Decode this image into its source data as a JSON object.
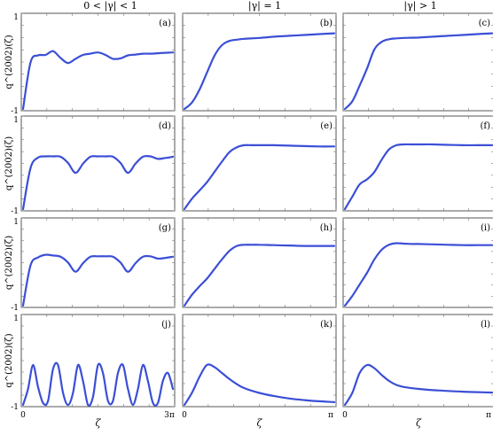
{
  "column_headers": [
    "0 < |γ| < 1",
    "|γ| = 1",
    "|γ| > 1"
  ],
  "ylabel": "q^(2002)(ζ)",
  "xlabel": "ζ",
  "chart_data": [
    {
      "type": "line",
      "panel_label": "(a)",
      "xlim": [
        0,
        3
      ],
      "ylim": [
        -1,
        1
      ],
      "y_ticks": [
        "1",
        "-1"
      ],
      "x": [
        0,
        0.15,
        0.3,
        0.45,
        0.6,
        0.75,
        0.9,
        1.05,
        1.2,
        1.35,
        1.5,
        1.65,
        1.8,
        1.95,
        2.1,
        2.25,
        2.4,
        2.55,
        2.7,
        2.85,
        3.0
      ],
      "y": [
        -1,
        0.1,
        0.26,
        0.27,
        0.36,
        0.2,
        0.08,
        0.18,
        0.27,
        0.3,
        0.33,
        0.27,
        0.18,
        0.19,
        0.26,
        0.28,
        0.3,
        0.3,
        0.31,
        0.32,
        0.33
      ]
    },
    {
      "type": "line",
      "panel_label": "(b)",
      "xlim": [
        0,
        1
      ],
      "ylim": [
        -1,
        1
      ],
      "y_ticks": [],
      "x": [
        0,
        0.05,
        0.1,
        0.15,
        0.2,
        0.25,
        0.3,
        0.35,
        0.4,
        0.5,
        0.6,
        0.7,
        0.8,
        0.9,
        1.0
      ],
      "y": [
        -1,
        -0.85,
        -0.55,
        -0.15,
        0.25,
        0.5,
        0.6,
        0.63,
        0.65,
        0.67,
        0.7,
        0.72,
        0.74,
        0.76,
        0.78
      ]
    },
    {
      "type": "line",
      "panel_label": "(c)",
      "xlim": [
        0,
        1
      ],
      "ylim": [
        -1,
        1
      ],
      "y_ticks": [],
      "x": [
        0,
        0.05,
        0.1,
        0.15,
        0.2,
        0.25,
        0.3,
        0.35,
        0.4,
        0.5,
        0.6,
        0.7,
        0.8,
        0.9,
        1.0
      ],
      "y": [
        -1,
        -0.82,
        -0.45,
        -0.05,
        0.4,
        0.58,
        0.64,
        0.66,
        0.67,
        0.68,
        0.7,
        0.72,
        0.74,
        0.76,
        0.78
      ]
    },
    {
      "type": "line",
      "panel_label": "(d)",
      "xlim": [
        0,
        3
      ],
      "ylim": [
        -1,
        1
      ],
      "y_ticks": [
        "1",
        "-1"
      ],
      "x": [
        0,
        0.15,
        0.3,
        0.45,
        0.6,
        0.75,
        0.9,
        1.05,
        1.2,
        1.35,
        1.5,
        1.65,
        1.8,
        1.95,
        2.1,
        2.25,
        2.4,
        2.55,
        2.7,
        2.85,
        3.0
      ],
      "y": [
        -1,
        0.0,
        0.25,
        0.28,
        0.28,
        0.27,
        0.12,
        -0.12,
        0.1,
        0.27,
        0.28,
        0.28,
        0.27,
        0.12,
        -0.12,
        0.1,
        0.27,
        0.28,
        0.22,
        0.24,
        0.27
      ]
    },
    {
      "type": "line",
      "panel_label": "(e)",
      "xlim": [
        0,
        1
      ],
      "ylim": [
        -1,
        1
      ],
      "y_ticks": [],
      "x": [
        0,
        0.05,
        0.1,
        0.15,
        0.2,
        0.25,
        0.3,
        0.35,
        0.4,
        0.45,
        0.5,
        0.6,
        0.7,
        0.8,
        0.9,
        1.0
      ],
      "y": [
        -1,
        -0.75,
        -0.55,
        -0.35,
        -0.1,
        0.15,
        0.38,
        0.5,
        0.55,
        0.55,
        0.55,
        0.55,
        0.54,
        0.53,
        0.52,
        0.52
      ]
    },
    {
      "type": "line",
      "panel_label": "(f)",
      "xlim": [
        0,
        1
      ],
      "ylim": [
        -1,
        1
      ],
      "y_ticks": [],
      "x": [
        0,
        0.05,
        0.1,
        0.15,
        0.2,
        0.25,
        0.3,
        0.35,
        0.4,
        0.45,
        0.5,
        0.6,
        0.7,
        0.8,
        0.9,
        1.0
      ],
      "y": [
        -1,
        -0.7,
        -0.4,
        -0.28,
        -0.1,
        0.2,
        0.45,
        0.55,
        0.57,
        0.57,
        0.57,
        0.57,
        0.56,
        0.55,
        0.55,
        0.55
      ]
    },
    {
      "type": "line",
      "panel_label": "(g)",
      "xlim": [
        0,
        3
      ],
      "ylim": [
        -1,
        1
      ],
      "y_ticks": [
        "1",
        "-1"
      ],
      "x": [
        0,
        0.15,
        0.3,
        0.45,
        0.6,
        0.75,
        0.9,
        1.05,
        1.2,
        1.35,
        1.5,
        1.65,
        1.8,
        1.95,
        2.1,
        2.25,
        2.4,
        2.55,
        2.7,
        2.85,
        3.0
      ],
      "y": [
        -1,
        0.05,
        0.25,
        0.32,
        0.3,
        0.27,
        0.12,
        -0.12,
        0.1,
        0.27,
        0.28,
        0.28,
        0.27,
        0.12,
        -0.12,
        0.1,
        0.27,
        0.28,
        0.22,
        0.24,
        0.27
      ]
    },
    {
      "type": "line",
      "panel_label": "(h)",
      "xlim": [
        0,
        1
      ],
      "ylim": [
        -1,
        1
      ],
      "y_ticks": [],
      "x": [
        0,
        0.05,
        0.1,
        0.15,
        0.2,
        0.25,
        0.3,
        0.35,
        0.4,
        0.45,
        0.5,
        0.6,
        0.7,
        0.8,
        0.9,
        1.0
      ],
      "y": [
        -1,
        -0.72,
        -0.5,
        -0.3,
        -0.05,
        0.2,
        0.42,
        0.55,
        0.58,
        0.58,
        0.58,
        0.57,
        0.56,
        0.55,
        0.55,
        0.55
      ]
    },
    {
      "type": "line",
      "panel_label": "(i)",
      "xlim": [
        0,
        1
      ],
      "ylim": [
        -1,
        1
      ],
      "y_ticks": [],
      "x": [
        0,
        0.05,
        0.1,
        0.15,
        0.2,
        0.25,
        0.3,
        0.35,
        0.4,
        0.45,
        0.5,
        0.6,
        0.7,
        0.8,
        0.9,
        1.0
      ],
      "y": [
        -1,
        -0.75,
        -0.45,
        -0.15,
        0.2,
        0.45,
        0.58,
        0.62,
        0.61,
        0.6,
        0.6,
        0.59,
        0.58,
        0.57,
        0.57,
        0.57
      ]
    },
    {
      "type": "line",
      "panel_label": "(j)",
      "xlim": [
        0,
        3
      ],
      "ylim": [
        -1,
        1
      ],
      "y_ticks": [
        "1",
        "-1"
      ],
      "x": [
        0,
        0.1,
        0.2,
        0.3,
        0.4,
        0.5,
        0.6,
        0.7,
        0.8,
        0.9,
        1.0,
        1.1,
        1.2,
        1.3,
        1.4,
        1.5,
        1.6,
        1.7,
        1.8,
        1.9,
        2.0,
        2.1,
        2.2,
        2.3,
        2.4,
        2.5,
        2.6,
        2.7,
        2.8,
        2.9,
        3.0
      ],
      "y": [
        -1,
        -0.6,
        0.0,
        -0.55,
        -0.95,
        -0.9,
        -0.1,
        0.0,
        -0.7,
        -1.0,
        -0.7,
        0.0,
        -0.4,
        -1.0,
        -0.8,
        0.0,
        -0.2,
        -0.9,
        -0.9,
        -0.2,
        0.0,
        -0.6,
        -1.0,
        -0.6,
        0.0,
        -0.4,
        -0.95,
        -0.95,
        -0.4,
        -0.2,
        -0.6
      ]
    },
    {
      "type": "line",
      "panel_label": "(k)",
      "xlim": [
        0,
        1
      ],
      "ylim": [
        -1,
        1
      ],
      "y_ticks": [],
      "x": [
        0,
        0.05,
        0.1,
        0.15,
        0.2,
        0.25,
        0.3,
        0.35,
        0.4,
        0.5,
        0.6,
        0.7,
        0.8,
        0.9,
        1.0
      ],
      "y": [
        -1,
        -0.7,
        -0.3,
        0.0,
        -0.05,
        -0.2,
        -0.35,
        -0.48,
        -0.58,
        -0.7,
        -0.78,
        -0.84,
        -0.88,
        -0.91,
        -0.93
      ]
    },
    {
      "type": "line",
      "panel_label": "(l)",
      "xlim": [
        0,
        1
      ],
      "ylim": [
        -1,
        1
      ],
      "y_ticks": [],
      "x": [
        0,
        0.05,
        0.1,
        0.15,
        0.2,
        0.25,
        0.3,
        0.35,
        0.4,
        0.5,
        0.6,
        0.7,
        0.8,
        0.9,
        1.0
      ],
      "y": [
        -1,
        -0.7,
        -0.2,
        0.0,
        -0.08,
        -0.25,
        -0.4,
        -0.5,
        -0.55,
        -0.6,
        -0.63,
        -0.65,
        -0.67,
        -0.68,
        -0.69
      ]
    }
  ],
  "x_ticks": {
    "left": {
      "start": "0",
      "end": "3π"
    },
    "middle": {
      "start": "0",
      "end": "π"
    },
    "right": {
      "start": "0",
      "end": "π"
    }
  },
  "colors": {
    "curve": "#3b4fd6",
    "frame": "#555555"
  }
}
